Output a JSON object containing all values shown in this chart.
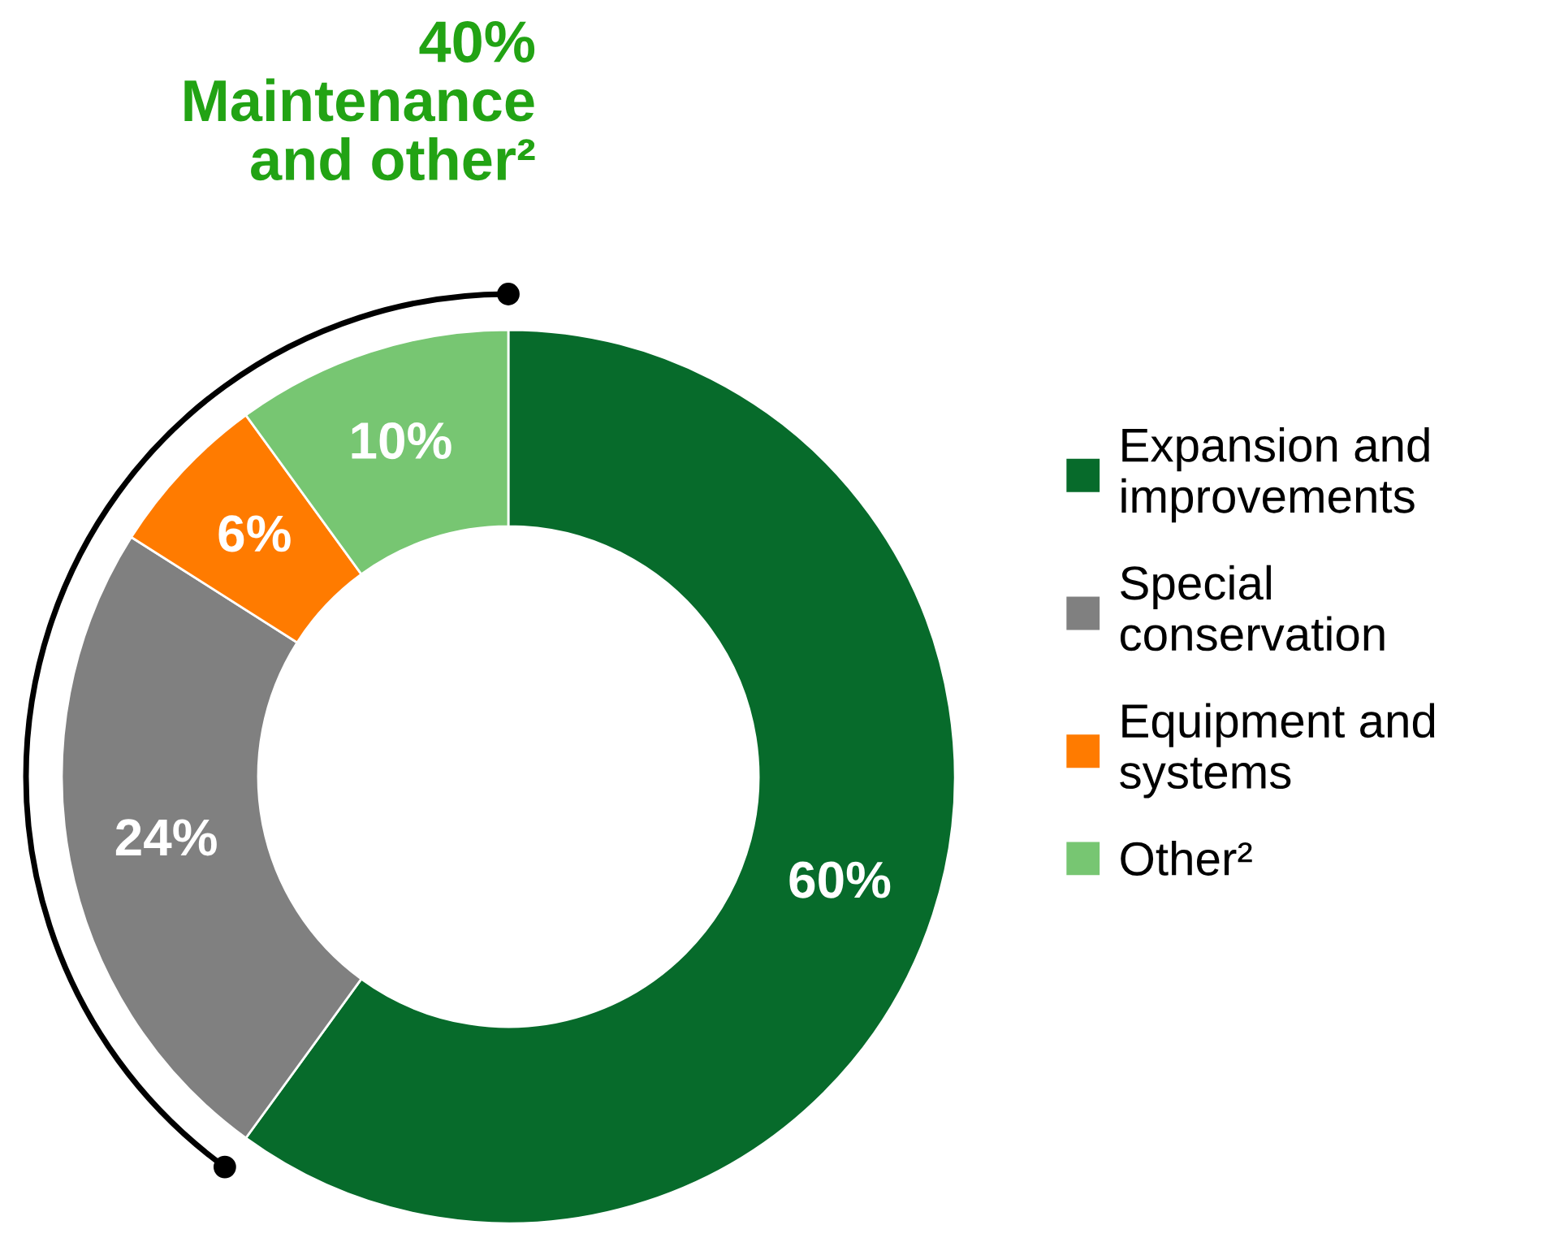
{
  "chart_data": {
    "type": "donut",
    "categories": [
      "Expansion and\nimprovements",
      "Special\nconservation",
      "Equipment and\nsystems",
      "Other²"
    ],
    "values": [
      60,
      24,
      6,
      10
    ],
    "colors": [
      "#076b2b",
      "#808080",
      "#ff7b00",
      "#77c672"
    ],
    "value_labels": [
      "60%",
      "24%",
      "6%",
      "10%"
    ],
    "annotations": [
      "40%\nMaintenance\nand other²"
    ],
    "legend": "right"
  }
}
